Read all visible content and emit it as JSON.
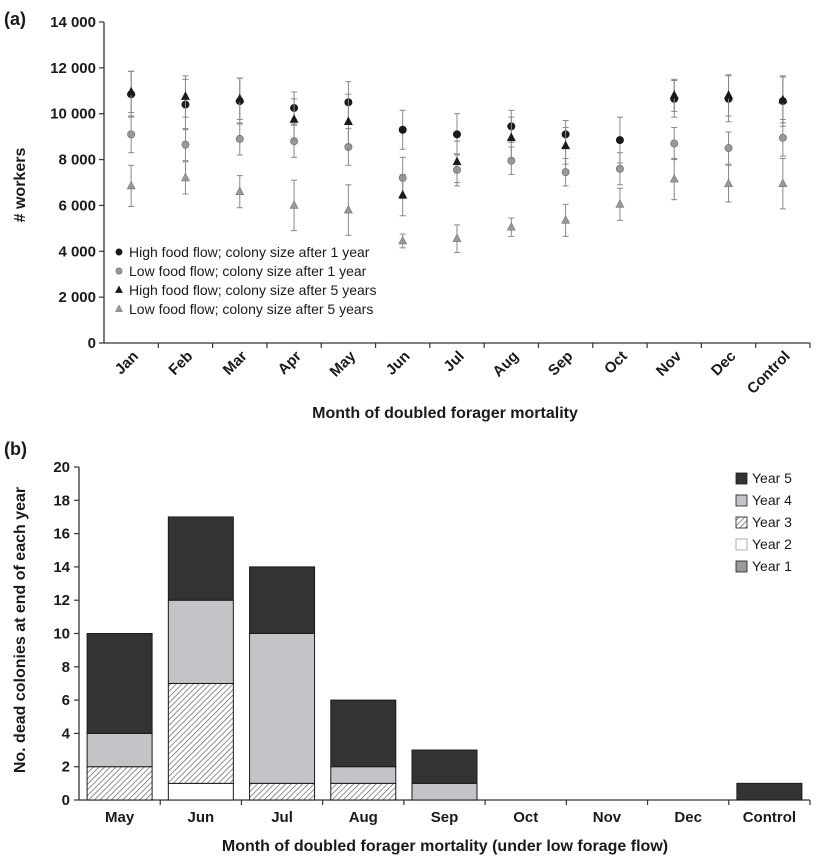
{
  "chart_data": [
    {
      "panel_label": "(a)",
      "type": "scatter",
      "title": "",
      "xlabel": "Month of doubled forager mortality",
      "ylabel": "# workers",
      "categories": [
        "Jan",
        "Feb",
        "Mar",
        "Apr",
        "May",
        "Jun",
        "Jul",
        "Aug",
        "Sep",
        "Oct",
        "Nov",
        "Dec",
        "Control"
      ],
      "ylim": [
        0,
        14000
      ],
      "yticks": [
        0,
        2000,
        4000,
        6000,
        8000,
        10000,
        12000,
        14000
      ],
      "ytick_labels": [
        "0",
        "2 000",
        "4 000",
        "6 000",
        "8 000",
        "10 000",
        "12 000",
        "14 000"
      ],
      "grid": false,
      "legend_position": "lower-left",
      "series": [
        {
          "name": "High food flow; colony size after 1 year",
          "marker": "circle",
          "color": "#1a1a1a",
          "values": [
            10850,
            10400,
            10550,
            10250,
            10500,
            9300,
            9100,
            9450,
            9100,
            8850,
            10650,
            10650,
            10550
          ],
          "errors": [
            1000,
            1100,
            1000,
            700,
            900,
            850,
            900,
            700,
            600,
            1000,
            800,
            1000,
            1100
          ]
        },
        {
          "name": "Low food flow; colony size after 1 year",
          "marker": "circle",
          "color": "#999999",
          "values": [
            9100,
            8650,
            8900,
            8800,
            8550,
            7200,
            7550,
            7950,
            7450,
            7600,
            8700,
            8500,
            8950
          ],
          "errors": [
            800,
            700,
            700,
            700,
            800,
            900,
            700,
            600,
            600,
            700,
            700,
            700,
            800
          ]
        },
        {
          "name": "High food flow; colony size after 5 years",
          "marker": "triangle",
          "color": "#1a1a1a",
          "values": [
            10950,
            10750,
            10650,
            9750,
            9650,
            6450,
            7900,
            8950,
            8600,
            null,
            10800,
            10800,
            10600
          ],
          "errors": [
            900,
            900,
            900,
            900,
            1200,
            900,
            900,
            900,
            800,
            null,
            700,
            900,
            1000
          ]
        },
        {
          "name": "Low food flow; colony size after 5 years",
          "marker": "triangle",
          "color": "#999999",
          "values": [
            6850,
            7200,
            6600,
            6000,
            5800,
            4450,
            4550,
            5050,
            5350,
            6050,
            7150,
            6950,
            6950
          ],
          "errors": [
            900,
            700,
            700,
            1100,
            1100,
            300,
            600,
            400,
            700,
            700,
            900,
            800,
            1100
          ]
        }
      ]
    },
    {
      "panel_label": "(b)",
      "type": "bar",
      "stacked": true,
      "title": "",
      "xlabel": "Month of doubled forager mortality (under low forage flow)",
      "ylabel": "No. dead colonies at end of each year",
      "categories": [
        "May",
        "Jun",
        "Jul",
        "Aug",
        "Sep",
        "Oct",
        "Nov",
        "Dec",
        "Control"
      ],
      "ylim": [
        0,
        20
      ],
      "yticks": [
        0,
        2,
        4,
        6,
        8,
        10,
        12,
        14,
        16,
        18,
        20
      ],
      "grid": false,
      "legend_position": "top-right",
      "series": [
        {
          "name": "Year 1",
          "color": "#9a9a9a",
          "fill": "solid",
          "values": [
            0,
            0,
            0,
            0,
            0,
            0,
            0,
            0,
            0
          ]
        },
        {
          "name": "Year 2",
          "color": "#ffffff",
          "fill": "solid",
          "values": [
            0,
            1,
            0,
            0,
            0,
            0,
            0,
            0,
            0
          ]
        },
        {
          "name": "Year 3",
          "color": "#ffffff",
          "fill": "hatch",
          "values": [
            2,
            6,
            1,
            1,
            0,
            0,
            0,
            0,
            0
          ]
        },
        {
          "name": "Year 4",
          "color": "#c2c4c8",
          "fill": "solid",
          "values": [
            2,
            5,
            9,
            1,
            1,
            0,
            0,
            0,
            0
          ]
        },
        {
          "name": "Year 5",
          "color": "#333333",
          "fill": "solid",
          "values": [
            6,
            5,
            4,
            4,
            2,
            0,
            0,
            0,
            1
          ]
        }
      ],
      "legend_order": [
        "Year 5",
        "Year 4",
        "Year 3",
        "Year 2",
        "Year 1"
      ]
    }
  ]
}
